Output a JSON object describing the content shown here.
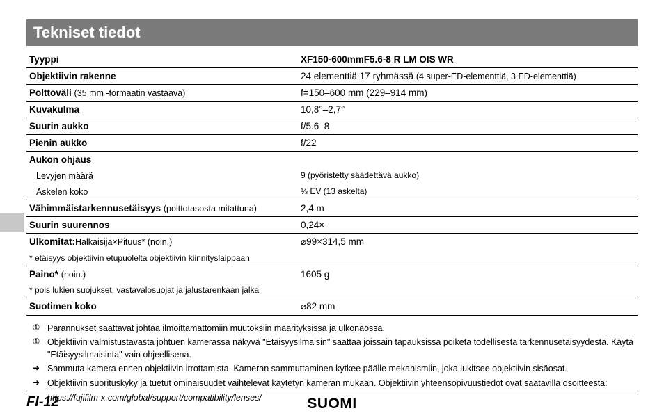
{
  "header": {
    "title": "Tekniset tiedot"
  },
  "table": {
    "type_label": "Tyyppi",
    "type_value": "XF150-600mmF5.6-8 R LM OIS WR",
    "construction_label": "Objektiivin rakenne",
    "construction_value": "24 elementtiä 17 ryhmässä",
    "construction_paren": "(4 super-ED-elementtiä, 3 ED-elementtiä)",
    "focal_label": "Polttoväli",
    "focal_paren": "(35 mm -formaatin vastaava)",
    "focal_value": "f=150–600 mm (229–914 mm)",
    "angle_label": "Kuvakulma",
    "angle_value": "10,8°–2,7°",
    "maxap_label": "Suurin aukko",
    "maxap_value": "f/5.6–8",
    "minap_label": "Pienin aukko",
    "minap_value": "f/22",
    "apcontrol_label": "Aukon ohjaus",
    "blades_label": "Levyjen määrä",
    "blades_value": "9 (pyöristetty säädettävä aukko)",
    "step_label": "Askelen koko",
    "step_value": "⅓ EV (13 askelta)",
    "minfocus_label": "Vähimmäistarkennusetäisyys",
    "minfocus_paren": "(polttotasosta mitattuna)",
    "minfocus_value": "2,4 m",
    "maxmag_label": "Suurin suurennos",
    "maxmag_value": "0,24×",
    "dims_label": "Ulkomitat:",
    "dims_sub": "Halkaisija×Pituus* (noin.)",
    "dims_note": "* etäisyys objektiivin etupuolelta objektiivin kiinnityslaippaan",
    "dims_value": "⌀99×314,5 mm",
    "weight_label": "Paino*",
    "weight_paren": "(noin.)",
    "weight_note": "* pois lukien suojukset, vastavalosuojat ja jalustarenkaan jalka",
    "weight_value": "1605 g",
    "filter_label": "Suotimen koko",
    "filter_value": "⌀82 mm"
  },
  "notes": {
    "sym_info": "①",
    "sym_caution": "➜",
    "n1": "Parannukset saattavat johtaa ilmoittamattomiin muutoksiin määrityksissä ja ulkonäössä.",
    "n2": "Objektiivin valmistustavasta johtuen kamerassa näkyvä \"Etäisyysilmaisin\" saattaa joissain tapauksissa poiketa todellisesta tarkennusetäisyydestä. Käytä \"Etäisyysilmaisinta\" vain ohjeellisena.",
    "n3": "Sammuta kamera ennen objektiivin irrottamista. Kameran sammuttaminen kytkee päälle mekanismiin, joka lukitsee objektiivin sisäosat.",
    "n4": "Objektiivin suorituskyky ja tuetut ominaisuudet vaihtelevat käytetyn kameran mukaan. Objektiivin yhteensopivuustiedot ovat saatavilla osoitteesta:",
    "url": "https://fujifilm-x.com/global/support/compatibility/lenses/"
  },
  "footer": {
    "page": "FI-12",
    "lang": "SUOMI"
  },
  "colors": {
    "header_bg": "#7a7a7a",
    "side_tab": "#c8c8c8",
    "text": "#000000",
    "bg": "#ffffff"
  }
}
